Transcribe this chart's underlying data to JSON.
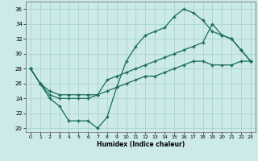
{
  "xlabel": "Humidex (Indice chaleur)",
  "bg_color": "#cceae8",
  "line_color": "#1a6b5a",
  "grid_color": "#aad4d0",
  "xlim": [
    -0.5,
    23.5
  ],
  "ylim": [
    19.5,
    37
  ],
  "yticks": [
    20,
    22,
    24,
    26,
    28,
    30,
    32,
    34,
    36
  ],
  "xticks": [
    0,
    1,
    2,
    3,
    4,
    5,
    6,
    7,
    8,
    9,
    10,
    11,
    12,
    13,
    14,
    15,
    16,
    17,
    18,
    19,
    20,
    21,
    22,
    23
  ],
  "line1_x": [
    0,
    1,
    2,
    3,
    4,
    5,
    6,
    7,
    8,
    9,
    10,
    11,
    12,
    13,
    14,
    15,
    16,
    17,
    18,
    19,
    20,
    21,
    22,
    23
  ],
  "line1_y": [
    28,
    26,
    24,
    23,
    21,
    21,
    21,
    20,
    21.5,
    25.5,
    29,
    31,
    32.5,
    33,
    33.5,
    35,
    36,
    35.5,
    34.5,
    33,
    32.5,
    32,
    30.5,
    29
  ],
  "line2_x": [
    0,
    1,
    2,
    3,
    4,
    5,
    6,
    7,
    8,
    9,
    10,
    11,
    12,
    13,
    14,
    15,
    16,
    17,
    18,
    19,
    20,
    21,
    22,
    23
  ],
  "line2_y": [
    28,
    26,
    25,
    24.5,
    24.5,
    24.5,
    24.5,
    24.5,
    26.5,
    27,
    27.5,
    28,
    28.5,
    29,
    29.5,
    30,
    30.5,
    31,
    31.5,
    34,
    32.5,
    32,
    30.5,
    29
  ],
  "line3_x": [
    0,
    1,
    2,
    3,
    4,
    5,
    6,
    7,
    8,
    9,
    10,
    11,
    12,
    13,
    14,
    15,
    16,
    17,
    18,
    19,
    20,
    21,
    22,
    23
  ],
  "line3_y": [
    28,
    26,
    24.5,
    24,
    24,
    24,
    24,
    24.5,
    25,
    25.5,
    26,
    26.5,
    27,
    27,
    27.5,
    28,
    28.5,
    29,
    29,
    28.5,
    28.5,
    28.5,
    29,
    29
  ]
}
